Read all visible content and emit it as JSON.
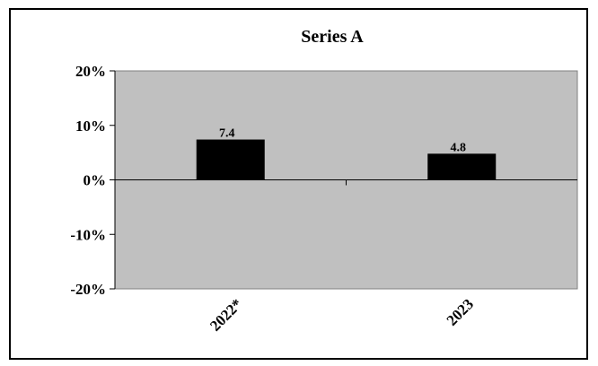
{
  "chart_data": {
    "type": "bar",
    "title": "Series A",
    "categories": [
      "2022*",
      "2023"
    ],
    "values": [
      7.4,
      4.8
    ],
    "data_labels": [
      "7.4",
      "4.8"
    ],
    "y_ticks": [
      "20%",
      "10%",
      "0%",
      "-10%",
      "-20%"
    ],
    "y_tick_values": [
      20,
      10,
      0,
      -10,
      -20
    ],
    "ylim": [
      -20,
      20
    ],
    "xlabel": "",
    "ylabel": "",
    "grid": false,
    "legend": "none",
    "colors": {
      "plot_background": "#c0c0c0",
      "bar": "#000000",
      "axis": "#000000",
      "frame": "#000000"
    }
  }
}
